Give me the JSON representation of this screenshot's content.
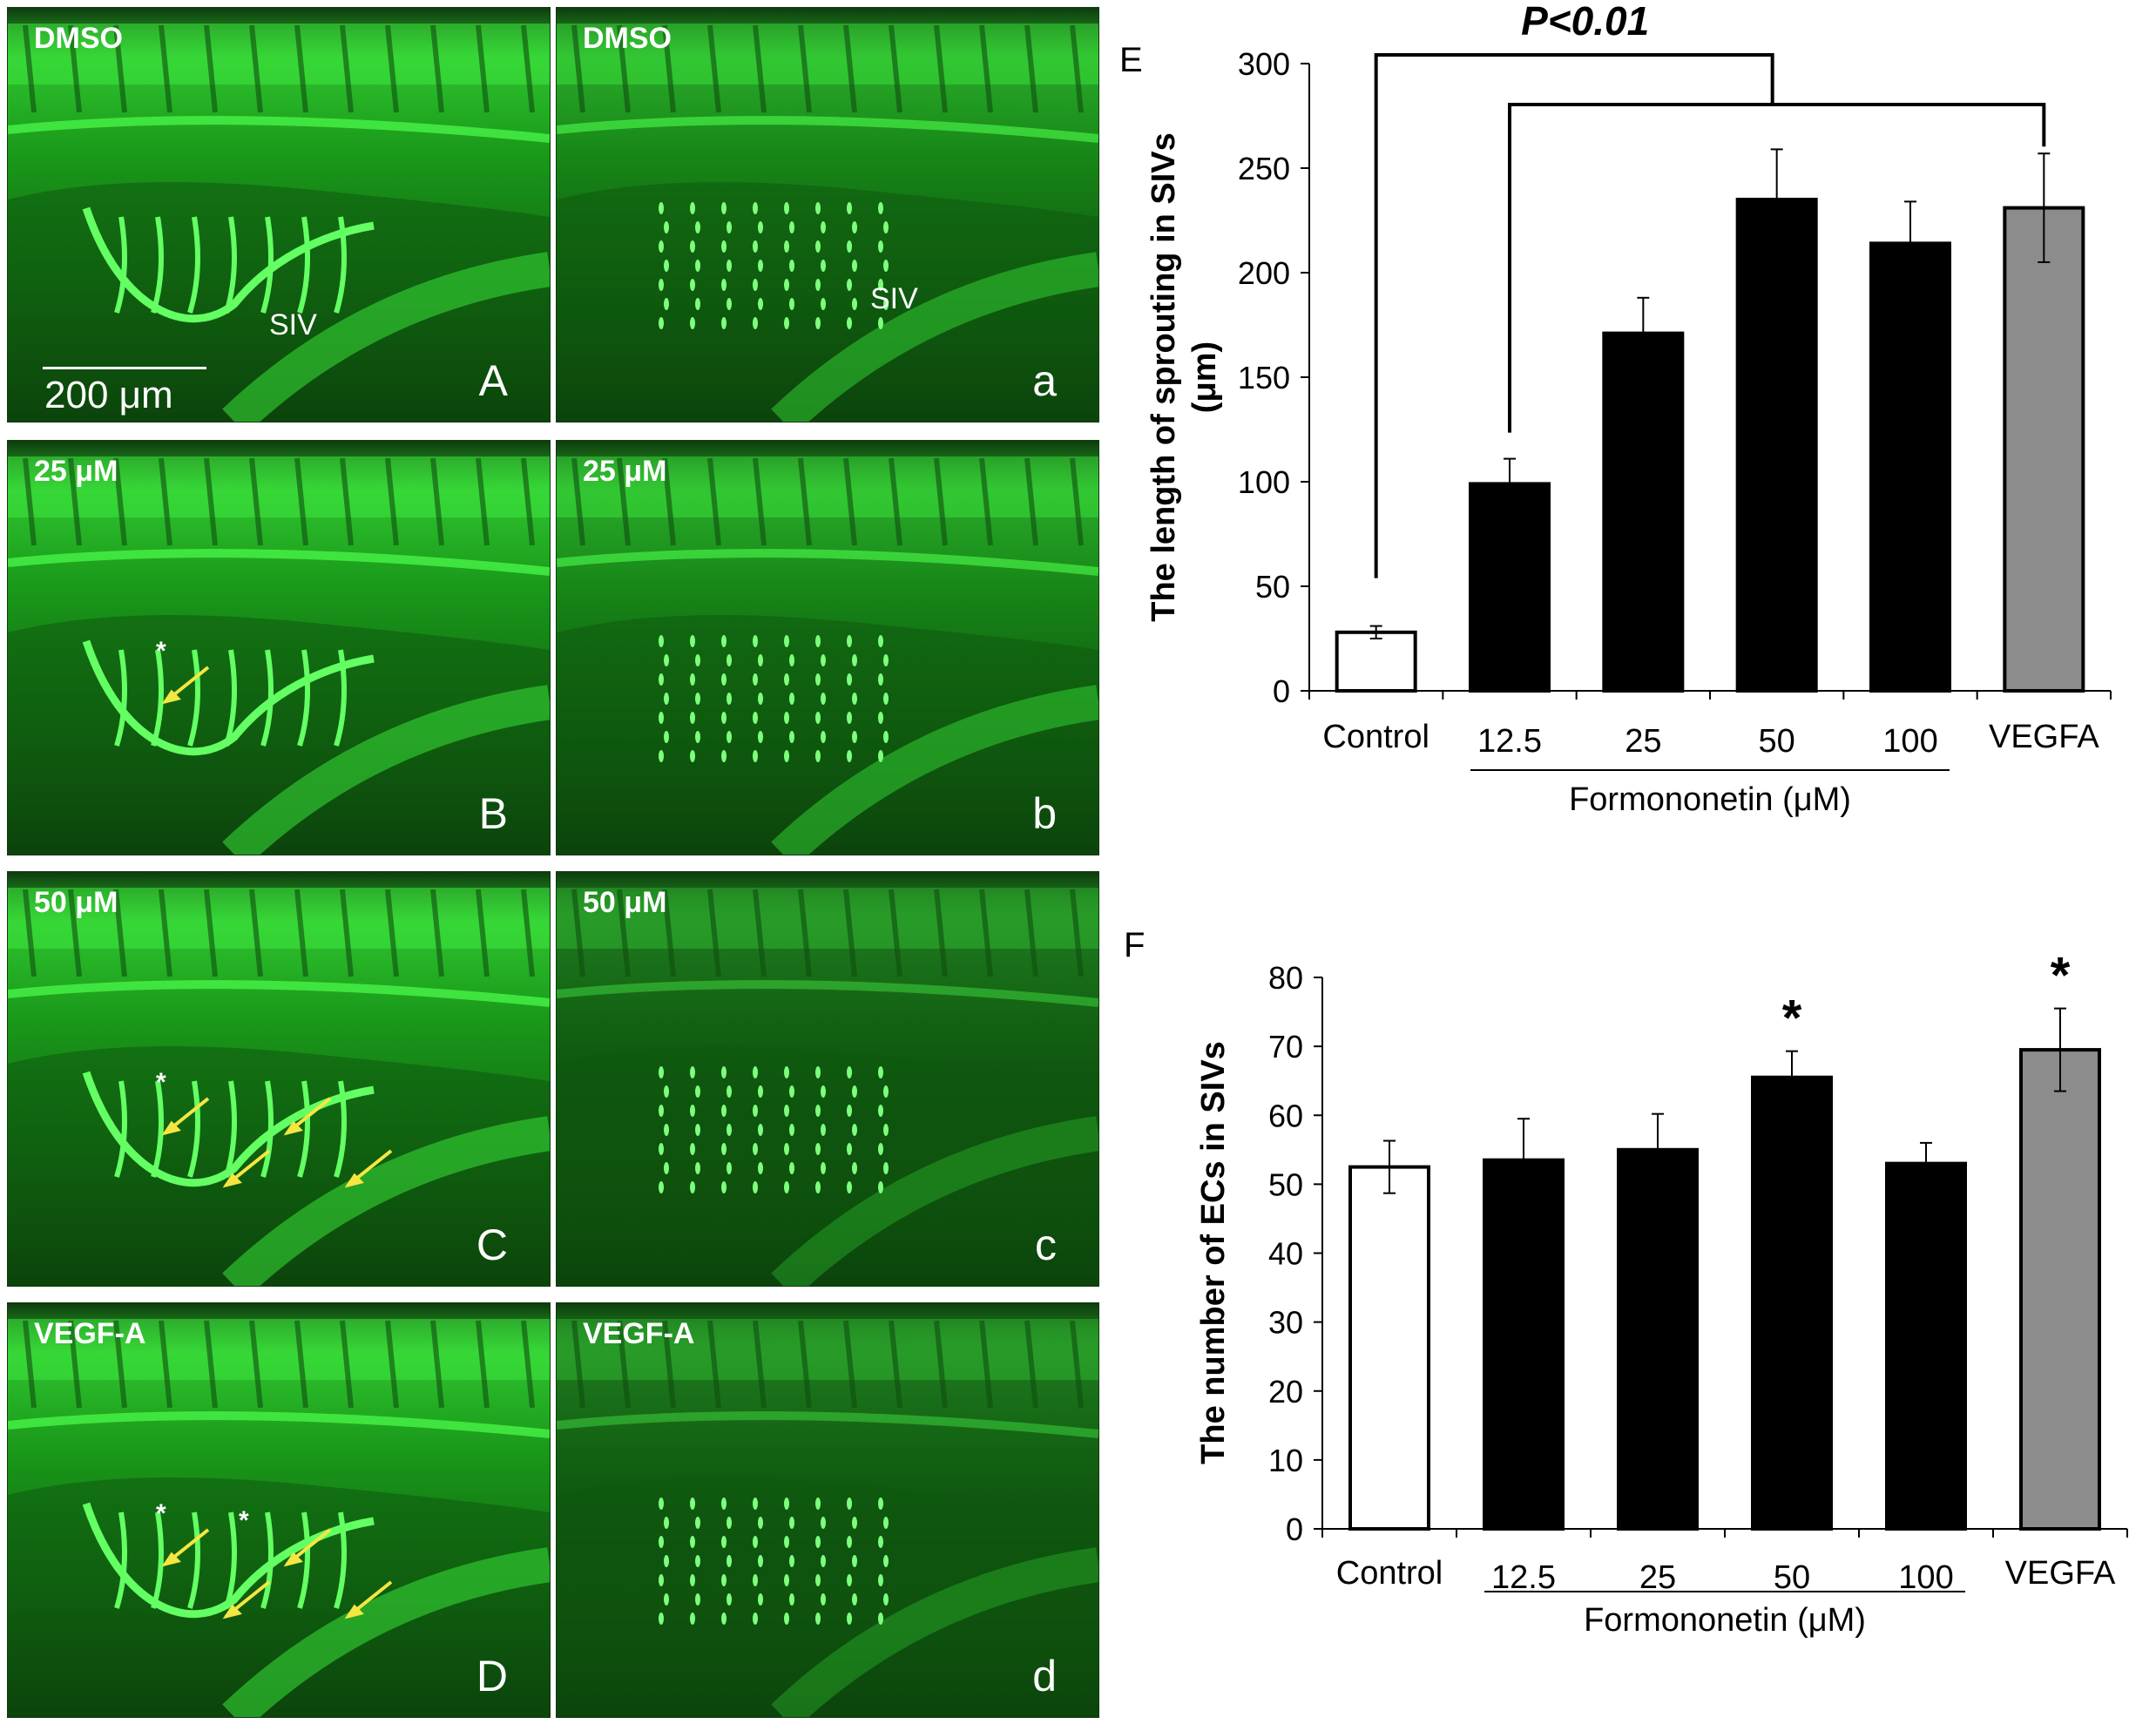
{
  "micrographs": {
    "rows": [
      {
        "condition": "DMSO",
        "left_letter": "A",
        "right_letter": "a",
        "left_siv": "SIV",
        "right_siv": "SIV",
        "scale_bar": "200 μm",
        "stars": 0,
        "arrows": 0
      },
      {
        "condition": "25 μM",
        "left_letter": "B",
        "right_letter": "b",
        "stars": 1,
        "arrows": 1
      },
      {
        "condition": "50 μM",
        "left_letter": "C",
        "right_letter": "c",
        "stars": 1,
        "arrows": 4
      },
      {
        "condition": "VEGF-A",
        "left_letter": "D",
        "right_letter": "d",
        "stars": 2,
        "arrows": 4
      }
    ],
    "star_symbol": "*",
    "colors": {
      "fluorescence": "#22e022",
      "arrow": "#f5e642",
      "background": "#0a1f0a"
    }
  },
  "chart_data": [
    {
      "panel_label": "E",
      "type": "bar",
      "categories": [
        "Control",
        "12.5",
        "25",
        "50",
        "100",
        "VEGFA"
      ],
      "values": [
        28,
        99,
        171,
        235,
        214,
        231
      ],
      "errors": [
        3,
        12,
        17,
        24,
        20,
        26
      ],
      "bar_colors": [
        "#ffffff",
        "#000000",
        "#000000",
        "#000000",
        "#000000",
        "#8c8c8c"
      ],
      "ylabel": "The length of sprouting in SIVs (μm)",
      "ylabel_lines": [
        "The length of sprouting in SIVs",
        "(μm)"
      ],
      "xgroup_label": "Formononetin (μM)",
      "yticks": [
        0,
        50,
        100,
        150,
        200,
        250,
        300
      ],
      "ylim": [
        0,
        300
      ],
      "annotation": "P<0.01",
      "grid": false
    },
    {
      "panel_label": "F",
      "type": "bar",
      "categories": [
        "Control",
        "12.5",
        "25",
        "50",
        "100",
        "VEGFA"
      ],
      "values": [
        52.5,
        53.5,
        55,
        65.5,
        53,
        69.5
      ],
      "errors": [
        3.8,
        6,
        5.2,
        3.8,
        3,
        6
      ],
      "bar_colors": [
        "#ffffff",
        "#000000",
        "#000000",
        "#000000",
        "#000000",
        "#8c8c8c"
      ],
      "ylabel": "The number of ECs in SIVs",
      "xgroup_label": "Formononetin (μM)",
      "yticks": [
        0,
        10,
        20,
        30,
        40,
        50,
        60,
        70,
        80
      ],
      "ylim": [
        0,
        80
      ],
      "significance": [
        "",
        "",
        "",
        "*",
        "",
        "*"
      ],
      "grid": false
    }
  ]
}
